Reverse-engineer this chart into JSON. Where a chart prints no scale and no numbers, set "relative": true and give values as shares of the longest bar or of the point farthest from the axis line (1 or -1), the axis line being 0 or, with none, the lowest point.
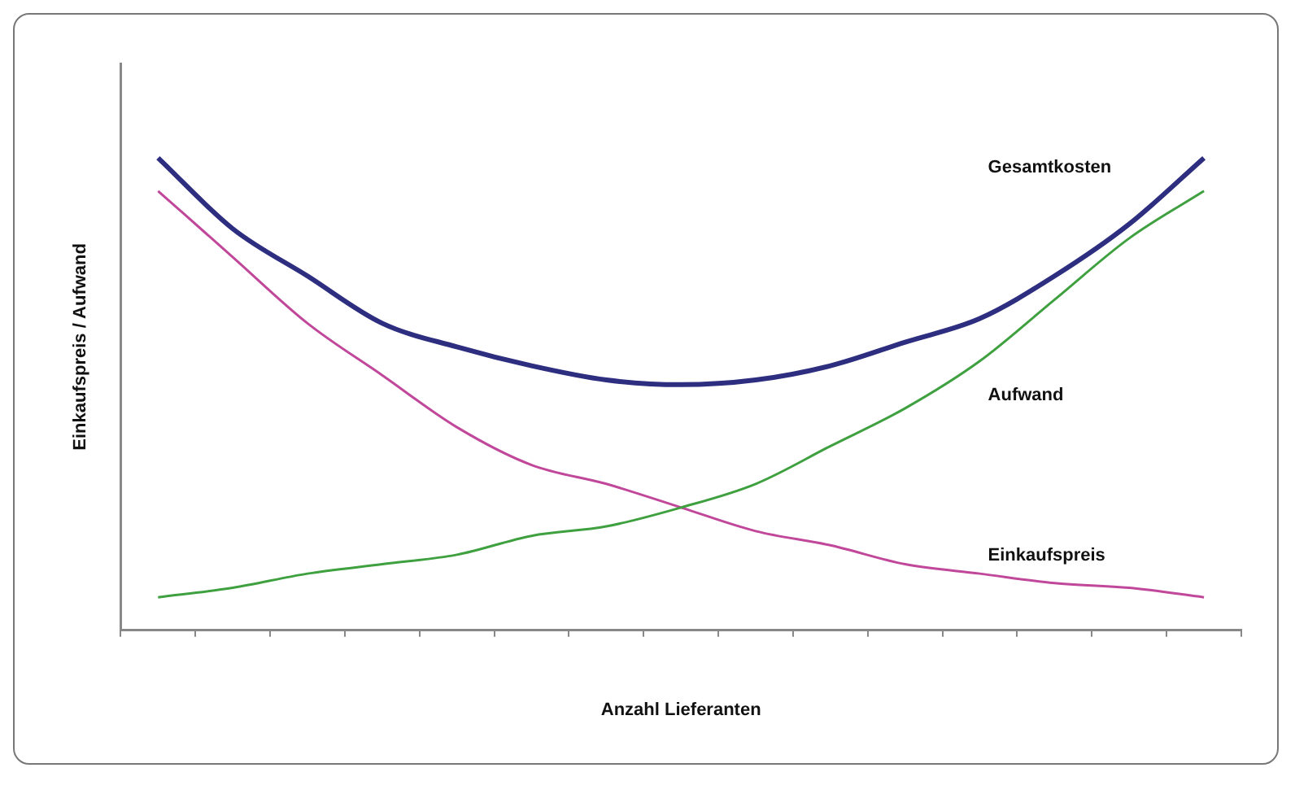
{
  "chart_data": {
    "type": "line",
    "relative": true,
    "xlabel": "Anzahl Lieferanten",
    "ylabel": "Einkaufspreis / Aufwand",
    "categories": [
      null,
      null,
      null,
      null,
      null,
      null,
      null,
      null,
      null,
      null,
      null,
      null,
      null,
      null,
      null
    ],
    "legend": false,
    "grid": false,
    "marker": "none",
    "series": [
      {
        "name": "Gesamtkosten",
        "color": "#2e2e80",
        "values": [
          1.0,
          0.85,
          0.75,
          0.65,
          0.6,
          0.56,
          0.53,
          0.52,
          0.53,
          0.56,
          0.61,
          0.66,
          0.75,
          0.86,
          1.0
        ]
      },
      {
        "name": "Aufwand",
        "color": "#3fa040",
        "values": [
          0.07,
          0.09,
          0.12,
          0.14,
          0.16,
          0.2,
          0.22,
          0.26,
          0.31,
          0.39,
          0.47,
          0.57,
          0.7,
          0.83,
          0.93
        ]
      },
      {
        "name": "Einkaufspreis",
        "color": "#c0479a",
        "values": [
          0.93,
          0.79,
          0.65,
          0.54,
          0.43,
          0.35,
          0.31,
          0.26,
          0.21,
          0.18,
          0.14,
          0.12,
          0.1,
          0.09,
          0.07
        ]
      }
    ]
  }
}
